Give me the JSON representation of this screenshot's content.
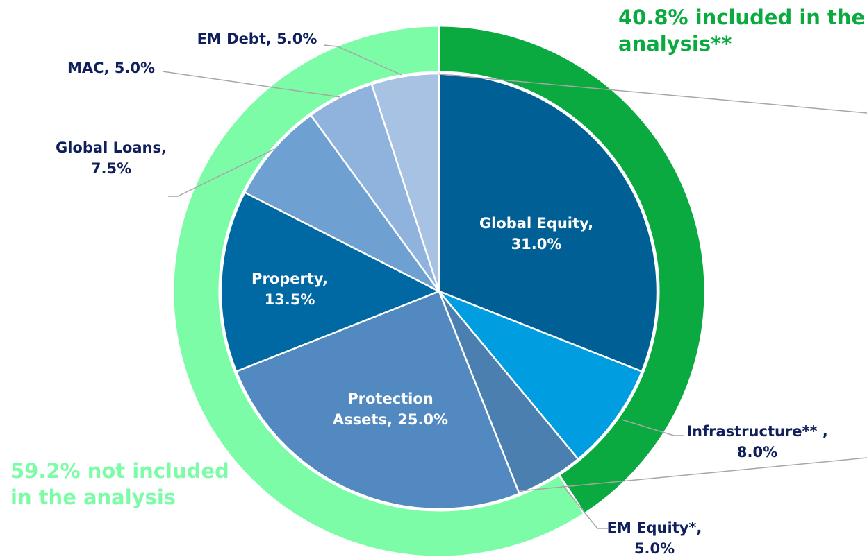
{
  "chart_data": {
    "type": "pie",
    "categories": [
      "Global Equity",
      "Infrastructure**",
      "EM Equity*",
      "Protection Assets",
      "Property",
      "Global Loans",
      "MAC",
      "EM Debt"
    ],
    "values": [
      31,
      8,
      5,
      25,
      13.5,
      7.5,
      5,
      5
    ],
    "value_labels": [
      "Global Equity, 31.0%",
      "Infrastructure** , 8.0%",
      "EM Equity*, 5.0%",
      "Protection Assets, 25.0%",
      "Property, 13.5%",
      "Global Loans, 7.5%",
      "MAC, 5.0%",
      "EM Debt, 5.0%"
    ],
    "colors": [
      "#005f94",
      "#009de0",
      "#4a7fb0",
      "#5289c0",
      "#0069a3",
      "#6fa0d2",
      "#8fb3dc",
      "#a8c2e4"
    ],
    "ring": {
      "values": [
        40.8,
        59.2
      ],
      "value_labels": [
        "40.8% included in the analysis**",
        "59.2% not included in the analysis"
      ],
      "colors": [
        "#0aaa40",
        "#7dfca8"
      ]
    }
  }
}
